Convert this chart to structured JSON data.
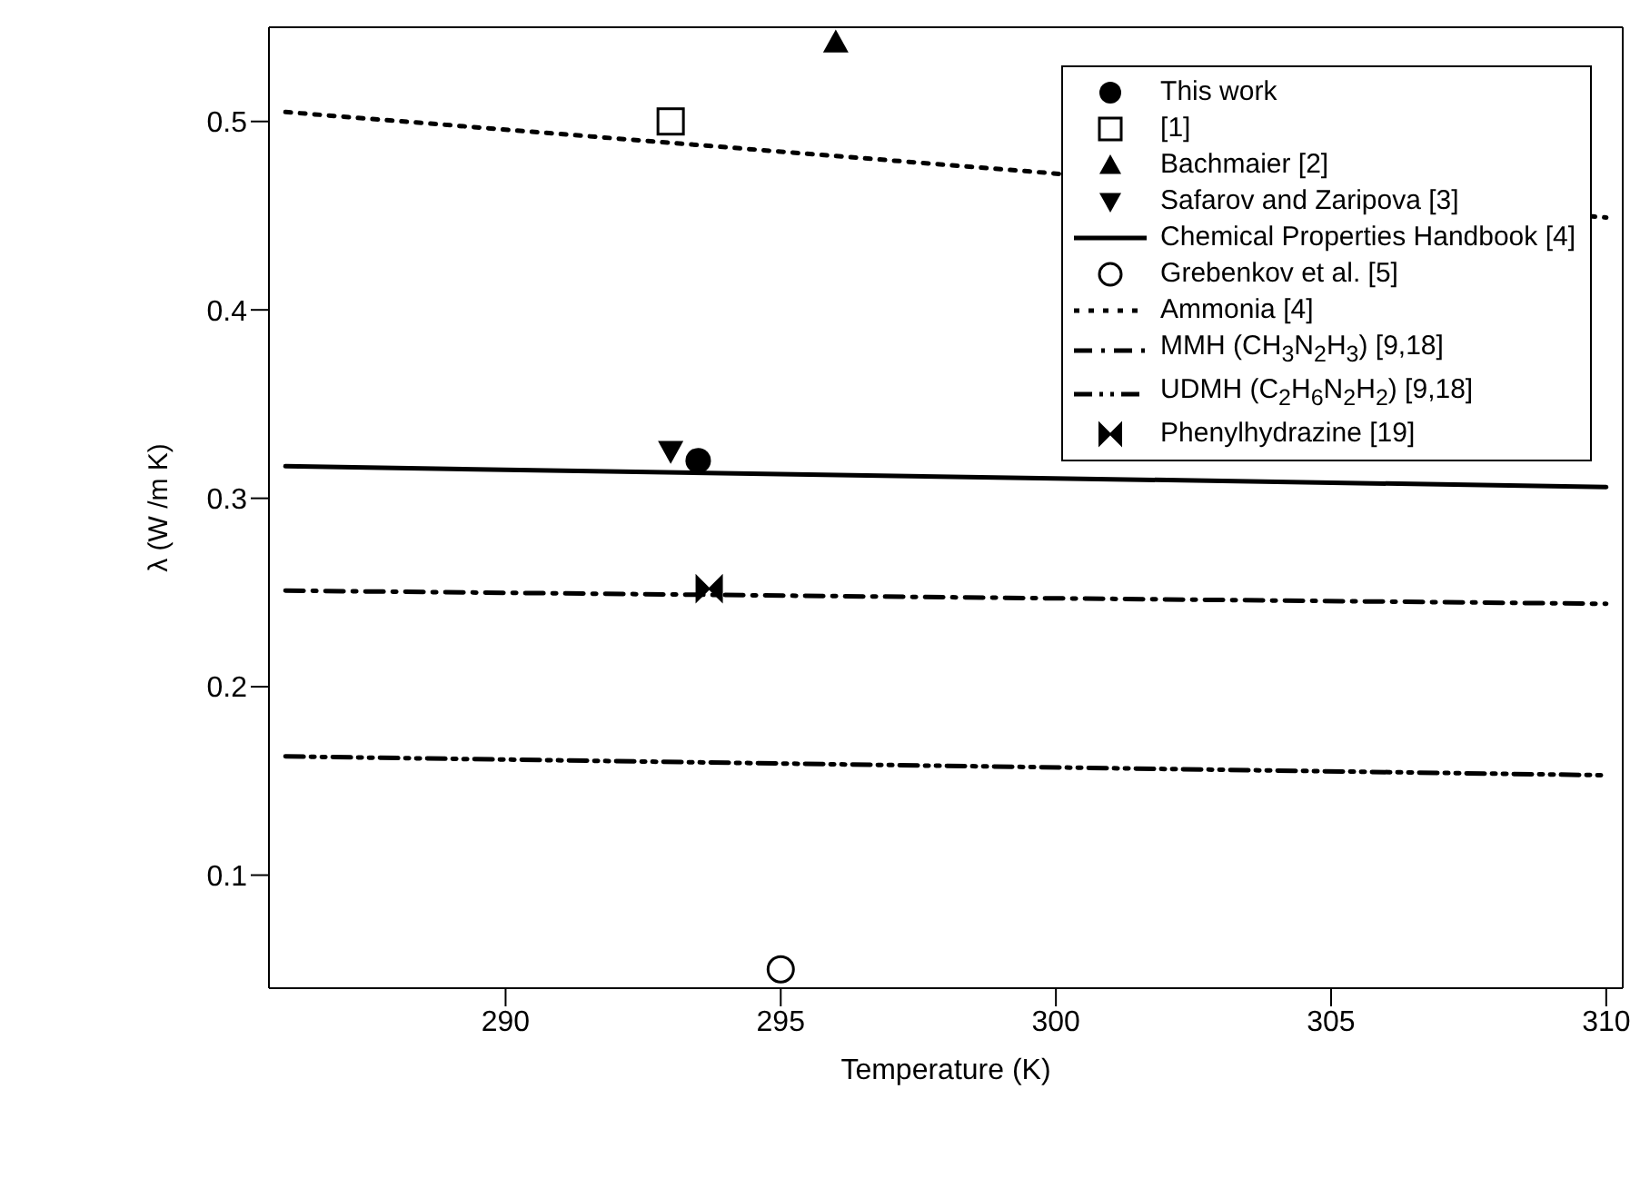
{
  "chart_data": {
    "type": "scatter",
    "xlabel": "Temperature (K)",
    "ylabel": "λ (W /m K)",
    "xlim": [
      285.7,
      310.3
    ],
    "ylim": [
      0.04,
      0.55
    ],
    "xticks": [
      290,
      295,
      300,
      305,
      310
    ],
    "yticks": [
      0.1,
      0.2,
      0.3,
      0.4,
      0.5
    ],
    "legend": "top right",
    "series": [
      {
        "name": "This work",
        "marker": "circle",
        "color": "#000000",
        "x": [
          293.5
        ],
        "values": [
          0.32
        ]
      },
      {
        "name": "[1]",
        "marker": "square-open",
        "color": "#000000",
        "x": [
          293.0
        ],
        "values": [
          0.5
        ]
      },
      {
        "name": "Bachmaier [2]",
        "marker": "triangle",
        "color": "#000000",
        "x": [
          296.0
        ],
        "values": [
          0.542
        ]
      },
      {
        "name": "Safarov and Zaripova [3]",
        "marker": "triangle-down",
        "color": "#000000",
        "x": [
          293.0
        ],
        "values": [
          0.325
        ]
      },
      {
        "name": "Chemical Properties Handbook [4]",
        "type": "line",
        "line_style": "solid",
        "color": "#000000",
        "x": [
          286,
          310
        ],
        "values": [
          0.317,
          0.306
        ]
      },
      {
        "name": "Grebenkov et al. [5]",
        "marker": "circle-open",
        "color": "#000000",
        "x": [
          295.0
        ],
        "values": [
          0.05
        ]
      },
      {
        "name": "Ammonia [4]",
        "type": "line",
        "line_style": "dotted",
        "color": "#000000",
        "x": [
          286,
          310
        ],
        "values": [
          0.505,
          0.449
        ]
      },
      {
        "name": "MMH (CH$_{3}$N$_{2}$H$_{3}$) [9,18]",
        "type": "line",
        "line_style": "dashdot",
        "color": "#000000",
        "x": [
          286,
          310
        ],
        "values": [
          0.251,
          0.244
        ]
      },
      {
        "name": "UDMH (C$_{2}$H$_{6}$N$_{2}$H$_{2}$) [9,18]",
        "type": "line",
        "line_style": "dashdotdot",
        "color": "#000000",
        "x": [
          286,
          310
        ],
        "values": [
          0.163,
          0.153
        ]
      },
      {
        "name": "Phenylhydrazine [19]",
        "color": "#000000",
        "x": [
          293.7
        ],
        "values": [
          0.252
        ]
      }
    ]
  }
}
